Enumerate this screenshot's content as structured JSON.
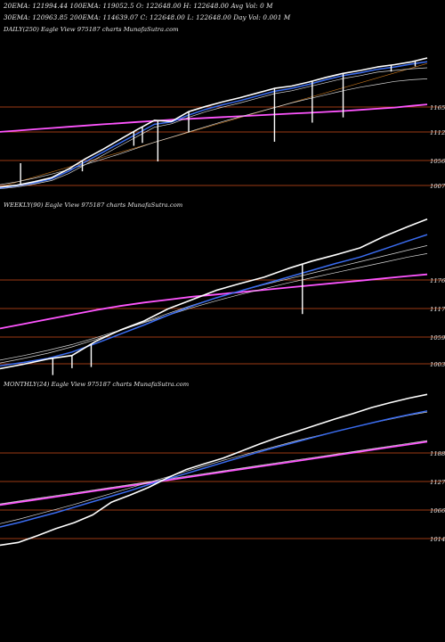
{
  "header": {
    "line1": "20EMA: 121994.44 100EMA: 119052.5   O: 122648.00 H: 122648.00 Avg Vol: 0  M",
    "line2": "30EMA: 120963.85 200EMA: 114639.07  C: 122648.00 L: 122648.00 Day Vol: 0.001 M"
  },
  "colors": {
    "background": "#000000",
    "price": "#ffffff",
    "ema_fast": "#3a6cf0",
    "ema_slow": "#ff55ff",
    "ema_mid": "#d8d8d8",
    "ema_trend": "#c8781e",
    "level_line": "#9c3a14",
    "text": "#e8e8e8"
  },
  "chart_data": [
    {
      "type": "line",
      "title": "DAILY(250) Eagle   View  975187 charts MunafaSutra.com",
      "y_tick_labels": [
        "1165",
        "1112",
        "1056",
        "1007"
      ],
      "ylim": [
        98500,
        126500
      ],
      "x": [
        0,
        10,
        20,
        30,
        40,
        50,
        60,
        70,
        80,
        90,
        100,
        110,
        120,
        130,
        140,
        150,
        160,
        170,
        180,
        190,
        200,
        210,
        220,
        230,
        240,
        249
      ],
      "series": [
        {
          "name": "price",
          "values": [
            100400,
            100700,
            101300,
            102000,
            103500,
            105300,
            106900,
            108600,
            110300,
            111900,
            111700,
            113400,
            114300,
            115100,
            115800,
            116600,
            117400,
            117800,
            118500,
            119300,
            120000,
            120500,
            121100,
            121500,
            122000,
            122648
          ]
        },
        {
          "name": "20EMA",
          "values": [
            100200,
            100600,
            101100,
            101800,
            103100,
            104800,
            106400,
            108000,
            109600,
            111200,
            111600,
            112800,
            113800,
            114600,
            115300,
            116100,
            116900,
            117400,
            118100,
            118900,
            119600,
            120100,
            120700,
            121100,
            121600,
            121994
          ]
        },
        {
          "name": "30EMA",
          "values": [
            100100,
            100400,
            100900,
            101500,
            102700,
            104300,
            105900,
            107500,
            109100,
            110700,
            111300,
            112400,
            113400,
            114200,
            114900,
            115700,
            116500,
            117000,
            117700,
            118400,
            119100,
            119600,
            120200,
            120500,
            120800,
            120963
          ]
        },
        {
          "name": "100EMA",
          "values": [
            100800,
            101300,
            101900,
            102600,
            103400,
            104300,
            105200,
            106100,
            107100,
            108100,
            109000,
            109900,
            110800,
            111700,
            112500,
            113300,
            114100,
            114900,
            115600,
            116300,
            117000,
            117600,
            118100,
            118600,
            118900,
            119052
          ]
        },
        {
          "name": "200EMA",
          "values": [
            109900,
            110120,
            110340,
            110560,
            110780,
            111000,
            111200,
            111400,
            111600,
            111800,
            112000,
            112150,
            112300,
            112450,
            112600,
            112750,
            112900,
            113050,
            113200,
            113350,
            113500,
            113700,
            113900,
            114100,
            114400,
            114639
          ]
        }
      ],
      "spikes": [
        {
          "x": 12,
          "to": 104500
        },
        {
          "x": 48,
          "to": 103100
        },
        {
          "x": 78,
          "to": 107500
        },
        {
          "x": 83,
          "to": 108000
        },
        {
          "x": 92,
          "to": 104800
        },
        {
          "x": 110,
          "to": 109800
        },
        {
          "x": 160,
          "to": 108200
        },
        {
          "x": 182,
          "to": 111500
        },
        {
          "x": 200,
          "to": 112400
        },
        {
          "x": 228,
          "to": 120300
        },
        {
          "x": 242,
          "to": 121200
        }
      ]
    },
    {
      "type": "line",
      "title": "WEEKLY(90) Eagle   View  975187 charts MunafaSutra.com",
      "y_tick_labels": [
        "1176",
        "1117",
        "1059",
        "1003"
      ],
      "ylim": [
        99000,
        127500
      ],
      "x": [
        0,
        5,
        10,
        15,
        20,
        25,
        30,
        35,
        40,
        45,
        50,
        55,
        60,
        65,
        70,
        75,
        80,
        85,
        89
      ],
      "series": [
        {
          "name": "price",
          "values": [
            100000,
            100800,
            101700,
            102300,
            104800,
            106700,
            108300,
            110400,
            112000,
            113600,
            114800,
            115900,
            117400,
            118700,
            119800,
            121000,
            123000,
            124700,
            126000
          ]
        },
        {
          "name": "20EMA",
          "values": [
            100500,
            101100,
            101800,
            102900,
            104400,
            106000,
            107600,
            109300,
            110900,
            112300,
            113500,
            114700,
            115900,
            117100,
            118300,
            119400,
            120800,
            122200,
            123300
          ]
        },
        {
          "name": "30EMA",
          "values": [
            101000,
            101800,
            102700,
            103800,
            105100,
            106600,
            108100,
            109600,
            111000,
            112300,
            113500,
            114600,
            115600,
            116600,
            117600,
            118600,
            119600,
            120600,
            121400
          ]
        },
        {
          "name": "100EMA",
          "values": [
            101500,
            102300,
            103200,
            104200,
            105400,
            106700,
            108000,
            109300,
            110600,
            111800,
            112900,
            113900,
            114900,
            115800,
            116700,
            117600,
            118500,
            119400,
            120000
          ]
        },
        {
          "name": "200EMA",
          "values": [
            107000,
            107800,
            108600,
            109400,
            110200,
            110900,
            111500,
            112000,
            112500,
            112900,
            113300,
            113700,
            114100,
            114500,
            114900,
            115300,
            115700,
            116100,
            116400
          ]
        }
      ],
      "spikes": [
        {
          "x": 11,
          "to": 98900
        },
        {
          "x": 15,
          "to": 100100
        },
        {
          "x": 19,
          "to": 100300
        },
        {
          "x": 63,
          "to": 109500
        }
      ]
    },
    {
      "type": "line",
      "title": "MONTHLY(24) Eagle   View  975187 charts MunafaSutra.com",
      "y_tick_labels": [
        "1188",
        "1127",
        "1066",
        "1014"
      ],
      "ylim": [
        98500,
        128000
      ],
      "x": [
        0,
        1,
        2,
        3,
        4,
        5,
        6,
        7,
        8,
        9,
        10,
        11,
        12,
        13,
        14,
        15,
        16,
        17,
        18,
        19,
        20,
        21,
        22,
        23
      ],
      "series": [
        {
          "name": "price",
          "values": [
            99900,
            100400,
            101600,
            102900,
            104000,
            105400,
            107700,
            109000,
            110400,
            112100,
            113600,
            114700,
            115700,
            117000,
            118300,
            119500,
            120600,
            121700,
            122800,
            123800,
            124900,
            125800,
            126600,
            127300
          ]
        },
        {
          "name": "20EMA",
          "values": [
            103200,
            104000,
            104900,
            105800,
            106800,
            107800,
            108800,
            109800,
            110900,
            111900,
            112900,
            113900,
            114900,
            115900,
            116900,
            117800,
            118700,
            119600,
            120500,
            121300,
            122100,
            122900,
            123600,
            124300
          ]
        },
        {
          "name": "30EMA",
          "values": [
            103800,
            104600,
            105500,
            106400,
            107300,
            108300,
            109300,
            110300,
            111300,
            112300,
            113300,
            114300,
            115300,
            116200,
            117100,
            118000,
            118900,
            119700,
            120500,
            121300,
            122100,
            122800,
            123500,
            124100
          ]
        },
        {
          "name": "100EMA",
          "values": [
            107400,
            107900,
            108400,
            108900,
            109400,
            109900,
            110400,
            110900,
            111400,
            111900,
            112400,
            112900,
            113400,
            113900,
            114400,
            114900,
            115400,
            115900,
            116400,
            116900,
            117400,
            117900,
            118400,
            118900
          ]
        },
        {
          "name": "200EMA",
          "values": [
            107200,
            107700,
            108200,
            108700,
            109200,
            109700,
            110200,
            110700,
            111200,
            111700,
            112200,
            112700,
            113200,
            113700,
            114200,
            114700,
            115200,
            115700,
            116200,
            116700,
            117200,
            117700,
            118200,
            118700
          ]
        }
      ],
      "spikes": []
    }
  ]
}
